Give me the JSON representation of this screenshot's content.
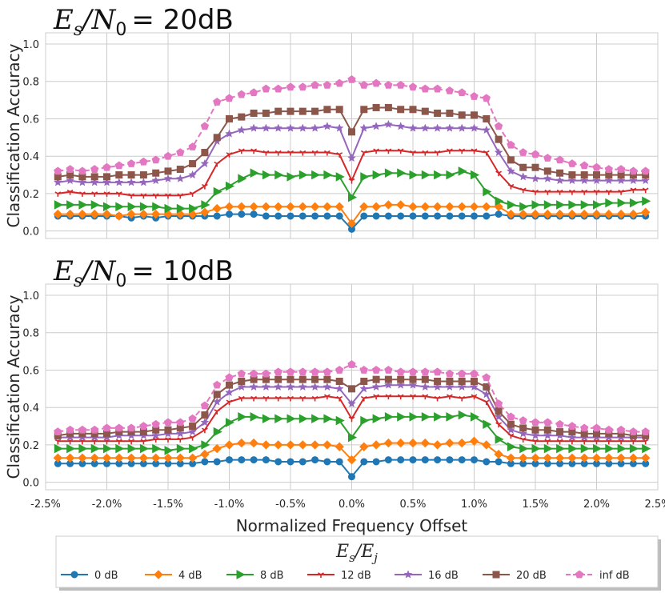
{
  "chart_data": [
    {
      "type": "line",
      "title": {
        "main": "E",
        "sub1": "s",
        "slash": "/N",
        "sub2": "0",
        "tail": "= 20dB"
      },
      "ylabel": "Classification Accuracy",
      "xlabel": "",
      "xlim": [
        -2.5,
        2.5
      ],
      "ylim": [
        -0.04,
        1.06
      ],
      "yticks": [
        "0.0",
        "0.2",
        "0.4",
        "0.6",
        "0.8",
        "1.0"
      ],
      "xticks": [],
      "grid": true,
      "x_start": -2.4,
      "x_step": 0.1,
      "series": [
        {
          "name": "0 dB",
          "color": "#1f77b4",
          "marker": "circle",
          "dash": false,
          "values": [
            0.08,
            0.08,
            0.08,
            0.08,
            0.08,
            0.08,
            0.07,
            0.08,
            0.07,
            0.08,
            0.08,
            0.08,
            0.08,
            0.08,
            0.09,
            0.09,
            0.09,
            0.08,
            0.08,
            0.08,
            0.08,
            0.08,
            0.08,
            0.08,
            0.01,
            0.08,
            0.08,
            0.08,
            0.08,
            0.08,
            0.08,
            0.08,
            0.08,
            0.08,
            0.08,
            0.08,
            0.09,
            0.08,
            0.08,
            0.08,
            0.08,
            0.08,
            0.08,
            0.08,
            0.08,
            0.08,
            0.08,
            0.08,
            0.08
          ]
        },
        {
          "name": "4 dB",
          "color": "#ff7f0e",
          "marker": "diamond",
          "dash": false,
          "values": [
            0.09,
            0.09,
            0.09,
            0.09,
            0.09,
            0.08,
            0.09,
            0.09,
            0.09,
            0.09,
            0.09,
            0.09,
            0.1,
            0.12,
            0.13,
            0.13,
            0.13,
            0.13,
            0.13,
            0.13,
            0.13,
            0.13,
            0.13,
            0.13,
            0.04,
            0.13,
            0.13,
            0.14,
            0.14,
            0.13,
            0.13,
            0.13,
            0.13,
            0.13,
            0.13,
            0.13,
            0.13,
            0.09,
            0.09,
            0.09,
            0.09,
            0.09,
            0.09,
            0.09,
            0.09,
            0.09,
            0.09,
            0.09,
            0.1
          ]
        },
        {
          "name": "8 dB",
          "color": "#2ca02c",
          "marker": "triangle-right",
          "dash": false,
          "values": [
            0.14,
            0.14,
            0.14,
            0.14,
            0.13,
            0.13,
            0.13,
            0.13,
            0.13,
            0.12,
            0.12,
            0.12,
            0.14,
            0.21,
            0.24,
            0.28,
            0.31,
            0.3,
            0.3,
            0.29,
            0.3,
            0.3,
            0.3,
            0.29,
            0.18,
            0.29,
            0.3,
            0.31,
            0.31,
            0.3,
            0.3,
            0.3,
            0.3,
            0.32,
            0.3,
            0.21,
            0.16,
            0.14,
            0.13,
            0.14,
            0.14,
            0.14,
            0.14,
            0.14,
            0.14,
            0.15,
            0.15,
            0.15,
            0.16
          ]
        },
        {
          "name": "12 dB",
          "color": "#d62728",
          "marker": "tri",
          "dash": false,
          "values": [
            0.2,
            0.21,
            0.2,
            0.2,
            0.2,
            0.2,
            0.19,
            0.19,
            0.19,
            0.19,
            0.19,
            0.2,
            0.24,
            0.36,
            0.41,
            0.43,
            0.43,
            0.42,
            0.42,
            0.42,
            0.42,
            0.42,
            0.42,
            0.41,
            0.27,
            0.42,
            0.43,
            0.43,
            0.43,
            0.42,
            0.42,
            0.42,
            0.43,
            0.43,
            0.43,
            0.42,
            0.31,
            0.24,
            0.22,
            0.21,
            0.21,
            0.21,
            0.21,
            0.21,
            0.21,
            0.21,
            0.21,
            0.22,
            0.22
          ]
        },
        {
          "name": "16 dB",
          "color": "#9467bd",
          "marker": "star",
          "dash": false,
          "values": [
            0.26,
            0.27,
            0.26,
            0.26,
            0.26,
            0.26,
            0.26,
            0.26,
            0.27,
            0.28,
            0.28,
            0.3,
            0.36,
            0.48,
            0.52,
            0.54,
            0.55,
            0.55,
            0.55,
            0.55,
            0.55,
            0.55,
            0.56,
            0.55,
            0.39,
            0.55,
            0.56,
            0.57,
            0.56,
            0.55,
            0.55,
            0.55,
            0.55,
            0.55,
            0.55,
            0.54,
            0.42,
            0.32,
            0.29,
            0.28,
            0.28,
            0.27,
            0.27,
            0.27,
            0.27,
            0.27,
            0.27,
            0.27,
            0.27
          ]
        },
        {
          "name": "20 dB",
          "color": "#8c564b",
          "marker": "square",
          "dash": false,
          "values": [
            0.29,
            0.3,
            0.29,
            0.29,
            0.29,
            0.3,
            0.3,
            0.3,
            0.31,
            0.32,
            0.33,
            0.36,
            0.42,
            0.5,
            0.6,
            0.61,
            0.63,
            0.63,
            0.64,
            0.64,
            0.64,
            0.64,
            0.65,
            0.65,
            0.53,
            0.65,
            0.66,
            0.66,
            0.65,
            0.65,
            0.64,
            0.63,
            0.63,
            0.62,
            0.62,
            0.6,
            0.49,
            0.38,
            0.34,
            0.34,
            0.32,
            0.31,
            0.3,
            0.3,
            0.3,
            0.3,
            0.3,
            0.3,
            0.3
          ]
        },
        {
          "name": "inf dB",
          "color": "#e377c2",
          "marker": "pentagon",
          "dash": true,
          "values": [
            0.32,
            0.33,
            0.32,
            0.33,
            0.34,
            0.35,
            0.36,
            0.37,
            0.38,
            0.4,
            0.42,
            0.45,
            0.56,
            0.69,
            0.71,
            0.73,
            0.74,
            0.76,
            0.76,
            0.77,
            0.77,
            0.78,
            0.78,
            0.79,
            0.81,
            0.78,
            0.79,
            0.78,
            0.78,
            0.77,
            0.76,
            0.76,
            0.75,
            0.74,
            0.72,
            0.71,
            0.56,
            0.46,
            0.42,
            0.41,
            0.39,
            0.38,
            0.36,
            0.35,
            0.34,
            0.33,
            0.33,
            0.32,
            0.32
          ]
        }
      ]
    },
    {
      "type": "line",
      "title": {
        "main": "E",
        "sub1": "s",
        "slash": "/N",
        "sub2": "0",
        "tail": "= 10dB"
      },
      "ylabel": "Classification Accuracy",
      "xlabel": "Normalized Frequency Offset",
      "xlim": [
        -2.5,
        2.5
      ],
      "ylim": [
        -0.04,
        1.06
      ],
      "yticks": [
        "0.0",
        "0.2",
        "0.4",
        "0.6",
        "0.8",
        "1.0"
      ],
      "xticks": [
        "-2.5%",
        "-2.0%",
        "-1.5%",
        "-1.0%",
        "-0.5%",
        "0.0%",
        "0.5%",
        "1.0%",
        "1.5%",
        "2.0%",
        "2.5%"
      ],
      "grid": true,
      "x_start": -2.4,
      "x_step": 0.1,
      "series": [
        {
          "name": "0 dB",
          "color": "#1f77b4",
          "marker": "circle",
          "dash": false,
          "values": [
            0.1,
            0.1,
            0.1,
            0.1,
            0.1,
            0.1,
            0.1,
            0.1,
            0.1,
            0.1,
            0.1,
            0.1,
            0.11,
            0.11,
            0.12,
            0.12,
            0.12,
            0.12,
            0.11,
            0.11,
            0.11,
            0.12,
            0.11,
            0.11,
            0.03,
            0.11,
            0.11,
            0.12,
            0.12,
            0.12,
            0.12,
            0.12,
            0.12,
            0.12,
            0.12,
            0.11,
            0.11,
            0.1,
            0.1,
            0.1,
            0.1,
            0.1,
            0.1,
            0.1,
            0.1,
            0.1,
            0.1,
            0.1,
            0.1
          ]
        },
        {
          "name": "4 dB",
          "color": "#ff7f0e",
          "marker": "diamond",
          "dash": false,
          "values": [
            0.13,
            0.13,
            0.13,
            0.13,
            0.13,
            0.13,
            0.13,
            0.13,
            0.13,
            0.13,
            0.13,
            0.13,
            0.15,
            0.18,
            0.2,
            0.21,
            0.21,
            0.2,
            0.2,
            0.2,
            0.2,
            0.2,
            0.2,
            0.19,
            0.12,
            0.19,
            0.2,
            0.21,
            0.21,
            0.21,
            0.21,
            0.2,
            0.21,
            0.21,
            0.22,
            0.2,
            0.15,
            0.13,
            0.13,
            0.13,
            0.13,
            0.13,
            0.13,
            0.13,
            0.13,
            0.13,
            0.13,
            0.13,
            0.13
          ]
        },
        {
          "name": "8 dB",
          "color": "#2ca02c",
          "marker": "triangle-right",
          "dash": false,
          "values": [
            0.18,
            0.18,
            0.18,
            0.18,
            0.18,
            0.18,
            0.18,
            0.18,
            0.18,
            0.17,
            0.18,
            0.18,
            0.2,
            0.27,
            0.32,
            0.35,
            0.35,
            0.34,
            0.34,
            0.34,
            0.34,
            0.34,
            0.34,
            0.33,
            0.24,
            0.33,
            0.34,
            0.35,
            0.35,
            0.35,
            0.35,
            0.35,
            0.35,
            0.36,
            0.35,
            0.31,
            0.23,
            0.19,
            0.18,
            0.18,
            0.18,
            0.18,
            0.18,
            0.18,
            0.18,
            0.18,
            0.18,
            0.18,
            0.18
          ]
        },
        {
          "name": "12 dB",
          "color": "#d62728",
          "marker": "tri",
          "dash": false,
          "values": [
            0.22,
            0.22,
            0.22,
            0.22,
            0.22,
            0.22,
            0.22,
            0.22,
            0.23,
            0.23,
            0.23,
            0.24,
            0.28,
            0.38,
            0.43,
            0.45,
            0.45,
            0.45,
            0.45,
            0.45,
            0.45,
            0.45,
            0.46,
            0.45,
            0.34,
            0.45,
            0.46,
            0.46,
            0.46,
            0.46,
            0.46,
            0.45,
            0.46,
            0.45,
            0.46,
            0.43,
            0.31,
            0.25,
            0.23,
            0.22,
            0.22,
            0.22,
            0.22,
            0.22,
            0.22,
            0.22,
            0.22,
            0.22,
            0.22
          ]
        },
        {
          "name": "16 dB",
          "color": "#9467bd",
          "marker": "star",
          "dash": false,
          "values": [
            0.24,
            0.24,
            0.24,
            0.24,
            0.24,
            0.25,
            0.25,
            0.25,
            0.25,
            0.26,
            0.26,
            0.27,
            0.32,
            0.43,
            0.48,
            0.51,
            0.51,
            0.51,
            0.51,
            0.51,
            0.51,
            0.51,
            0.51,
            0.5,
            0.42,
            0.5,
            0.51,
            0.52,
            0.52,
            0.52,
            0.51,
            0.51,
            0.51,
            0.51,
            0.51,
            0.47,
            0.35,
            0.28,
            0.26,
            0.25,
            0.25,
            0.25,
            0.24,
            0.24,
            0.24,
            0.24,
            0.24,
            0.24,
            0.24
          ]
        },
        {
          "name": "20 dB",
          "color": "#8c564b",
          "marker": "square",
          "dash": false,
          "values": [
            0.25,
            0.26,
            0.26,
            0.26,
            0.26,
            0.27,
            0.27,
            0.27,
            0.28,
            0.28,
            0.29,
            0.3,
            0.36,
            0.47,
            0.52,
            0.54,
            0.55,
            0.55,
            0.55,
            0.55,
            0.55,
            0.55,
            0.55,
            0.54,
            0.5,
            0.54,
            0.55,
            0.55,
            0.55,
            0.55,
            0.55,
            0.54,
            0.54,
            0.54,
            0.54,
            0.51,
            0.38,
            0.31,
            0.29,
            0.28,
            0.28,
            0.27,
            0.27,
            0.26,
            0.26,
            0.26,
            0.26,
            0.25,
            0.25
          ]
        },
        {
          "name": "inf dB",
          "color": "#e377c2",
          "marker": "pentagon",
          "dash": true,
          "values": [
            0.27,
            0.28,
            0.28,
            0.28,
            0.29,
            0.29,
            0.29,
            0.3,
            0.31,
            0.32,
            0.32,
            0.34,
            0.41,
            0.52,
            0.56,
            0.58,
            0.58,
            0.58,
            0.59,
            0.59,
            0.59,
            0.59,
            0.59,
            0.6,
            0.63,
            0.6,
            0.6,
            0.6,
            0.59,
            0.59,
            0.59,
            0.59,
            0.58,
            0.58,
            0.58,
            0.56,
            0.42,
            0.35,
            0.33,
            0.32,
            0.32,
            0.31,
            0.3,
            0.29,
            0.29,
            0.28,
            0.28,
            0.27,
            0.27
          ]
        }
      ]
    }
  ],
  "legend": {
    "title": {
      "main": "E",
      "sub1": "s",
      "slash": "/E",
      "sub2": "j"
    },
    "placement": "bottom-center",
    "entries": [
      "0 dB",
      "4 dB",
      "8 dB",
      "12 dB",
      "16 dB",
      "20 dB",
      "inf dB"
    ]
  }
}
